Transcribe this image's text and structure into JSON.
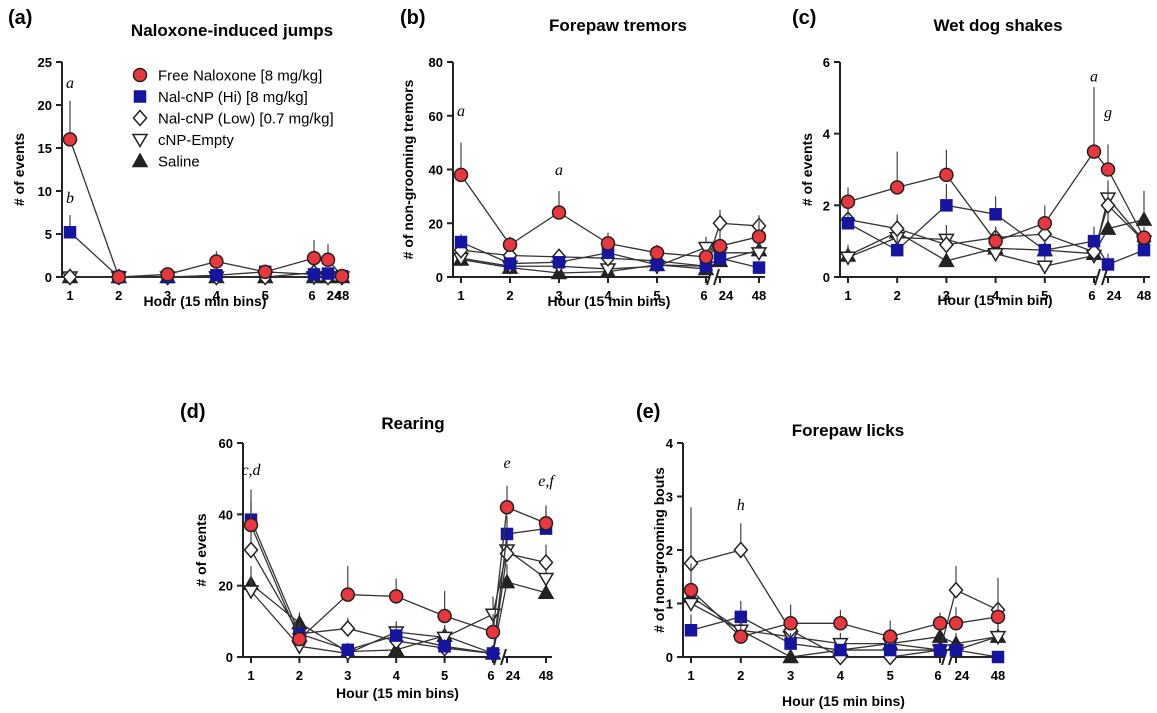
{
  "legend": [
    {
      "name": "Free Naloxone [8 mg/kg]",
      "marker": "circle",
      "fill": "#e8383d",
      "stroke": "#222222"
    },
    {
      "name": "Nal-cNP (Hi) [8 mg/kg]",
      "marker": "square",
      "fill": "#1515a0",
      "stroke": "#1515a0"
    },
    {
      "name": "Nal-cNP (Low) [0.7 mg/kg]",
      "marker": "diamond",
      "fill": "#ffffff",
      "stroke": "#222222"
    },
    {
      "name": "cNP-Empty",
      "marker": "triangle-down",
      "fill": "#ffffff",
      "stroke": "#222222"
    },
    {
      "name": "Saline",
      "marker": "triangle-up",
      "fill": "#222222",
      "stroke": "#222222"
    }
  ],
  "chart_data": [
    {
      "panel": "(a)",
      "type": "line",
      "title": "Naloxone-induced jumps",
      "xlabel": "Hour (15 min bins)",
      "ylabel": "# of events",
      "x": [
        "1",
        "2",
        "3",
        "4",
        "5",
        "6",
        "24",
        "48"
      ],
      "ylim": [
        0,
        25
      ],
      "yticks": [
        0,
        5,
        10,
        15,
        20,
        25
      ],
      "series": [
        {
          "name": "Free Naloxone [8 mg/kg]",
          "values": [
            16,
            0,
            0.3,
            1.8,
            0.6,
            2.2,
            2.0,
            0.1
          ],
          "err": [
            4.5,
            0,
            0.3,
            1.2,
            0.5,
            2.1,
            1.8,
            0.2
          ]
        },
        {
          "name": "Nal-cNP (Hi) [8 mg/kg]",
          "values": [
            5.2,
            0,
            0,
            0.2,
            0.6,
            0.3,
            0.4,
            0.1
          ],
          "err": [
            2.0,
            0,
            0,
            0.3,
            0.4,
            0.3,
            0.4,
            0.1
          ]
        },
        {
          "name": "Nal-cNP (Low) [0.7 mg/kg]",
          "values": [
            0,
            0,
            0,
            0,
            0,
            0.5,
            0,
            0
          ],
          "err": [
            0,
            0,
            0,
            0,
            0,
            0.3,
            0,
            0
          ]
        },
        {
          "name": "cNP-Empty",
          "values": [
            0,
            0,
            0,
            0,
            0,
            0,
            0,
            0
          ],
          "err": [
            0,
            0,
            0,
            0,
            0,
            0,
            0,
            0
          ]
        },
        {
          "name": "Saline",
          "values": [
            0,
            0,
            0,
            0,
            0,
            0,
            0,
            0
          ],
          "err": [
            0,
            0,
            0,
            0,
            0,
            0,
            0,
            0
          ]
        }
      ],
      "annotations": [
        {
          "text": "a",
          "x": "1",
          "y": 22
        },
        {
          "text": "b",
          "x": "1",
          "y": 8.6
        }
      ]
    },
    {
      "panel": "(b)",
      "type": "line",
      "title": "Forepaw tremors",
      "xlabel": "Hour (15 min bins)",
      "ylabel": "# of non-grooming tremors",
      "x": [
        "1",
        "2",
        "3",
        "4",
        "5",
        "6",
        "24",
        "48"
      ],
      "ylim": [
        0,
        80
      ],
      "yticks": [
        0,
        20,
        40,
        60,
        80
      ],
      "series": [
        {
          "name": "Free Naloxone [8 mg/kg]",
          "values": [
            38,
            12,
            24,
            12.5,
            9,
            7.5,
            11.5,
            15
          ],
          "err": [
            12,
            3,
            8,
            4,
            3,
            2.5,
            6,
            6
          ]
        },
        {
          "name": "Nal-cNP (Hi) [8 mg/kg]",
          "values": [
            13,
            5,
            5.5,
            9,
            4.5,
            4,
            7,
            3.5
          ],
          "err": [
            3,
            2,
            2,
            3,
            2,
            2,
            3,
            2
          ]
        },
        {
          "name": "Nal-cNP (Low) [0.7 mg/kg]",
          "values": [
            10,
            8,
            7.5,
            7,
            6,
            4,
            20,
            19
          ],
          "err": [
            3,
            3,
            3,
            3,
            3,
            2,
            5,
            4
          ]
        },
        {
          "name": "cNP-Empty",
          "values": [
            7,
            4,
            4,
            3,
            4,
            11,
            9,
            9
          ],
          "err": [
            2,
            2,
            2,
            2,
            2,
            4,
            3,
            4
          ]
        },
        {
          "name": "Saline",
          "values": [
            6.5,
            3.5,
            1.5,
            2,
            4.5,
            3,
            6,
            10
          ],
          "err": [
            2,
            2,
            1,
            1,
            2,
            2,
            2,
            3
          ]
        }
      ],
      "annotations": [
        {
          "text": "a",
          "x": "1",
          "y": 60
        },
        {
          "text": "a",
          "x": "3",
          "y": 38
        }
      ]
    },
    {
      "panel": "(c)",
      "type": "line",
      "title": "Wet dog shakes",
      "xlabel": "Hour (15 min bin)",
      "ylabel": "# of events",
      "x": [
        "1",
        "2",
        "3",
        "4",
        "5",
        "6",
        "24",
        "48"
      ],
      "ylim": [
        0,
        6
      ],
      "yticks": [
        0,
        2,
        4,
        6
      ],
      "series": [
        {
          "name": "Free Naloxone [8 mg/kg]",
          "values": [
            2.1,
            2.5,
            2.85,
            1.0,
            1.5,
            3.5,
            3.0,
            1.1
          ],
          "err": [
            0.4,
            1.0,
            0.7,
            0.4,
            0.5,
            1.8,
            0.7,
            0.3
          ]
        },
        {
          "name": "Nal-cNP (Hi) [8 mg/kg]",
          "values": [
            1.5,
            0.75,
            2.0,
            1.75,
            0.75,
            1.0,
            0.35,
            0.75
          ],
          "err": [
            0.4,
            0.4,
            0.6,
            0.5,
            0.3,
            0.4,
            0.3,
            0.3
          ]
        },
        {
          "name": "Nal-cNP (Low) [0.7 mg/kg]",
          "values": [
            1.6,
            1.35,
            0.9,
            1.1,
            1.2,
            0.7,
            2.0,
            1.0
          ],
          "err": [
            0.4,
            0.4,
            0.3,
            0.3,
            0.4,
            0.3,
            0.5,
            0.3
          ]
        },
        {
          "name": "cNP-Empty",
          "values": [
            0.55,
            1.1,
            1.05,
            0.65,
            0.3,
            0.6,
            2.2,
            1.0
          ],
          "err": [
            0.3,
            0.3,
            0.4,
            0.3,
            0.3,
            0.3,
            0.5,
            0.3
          ]
        },
        {
          "name": "Saline",
          "values": [
            0.6,
            1.25,
            0.45,
            0.8,
            0.75,
            0.65,
            1.35,
            1.6
          ],
          "err": [
            0.3,
            0.4,
            0.3,
            0.3,
            0.3,
            0.3,
            0.5,
            0.8
          ]
        }
      ],
      "annotations": [
        {
          "text": "a",
          "x": "6",
          "y": 5.45
        },
        {
          "text": "g",
          "x": "24",
          "y": 4.45
        }
      ]
    },
    {
      "panel": "(d)",
      "type": "line",
      "title": "Rearing",
      "xlabel": "Hour (15 min bins)",
      "ylabel": "# of events",
      "x": [
        "1",
        "2",
        "3",
        "4",
        "5",
        "6",
        "24",
        "48"
      ],
      "ylim": [
        0,
        60
      ],
      "yticks": [
        0,
        20,
        40,
        60
      ],
      "series": [
        {
          "name": "Free Naloxone [8 mg/kg]",
          "values": [
            37,
            5,
            17.5,
            17,
            11.5,
            7,
            42,
            37.5
          ],
          "err": [
            10,
            2,
            8,
            5,
            7,
            5,
            6,
            5
          ]
        },
        {
          "name": "Nal-cNP (Hi) [8 mg/kg]",
          "values": [
            38.5,
            6.5,
            2,
            6,
            3,
            1,
            34.5,
            36
          ],
          "err": [
            5,
            3,
            2,
            3,
            2,
            1,
            5,
            5
          ]
        },
        {
          "name": "Nal-cNP (Low) [0.7 mg/kg]",
          "values": [
            30,
            6.5,
            8,
            4.5,
            2.5,
            1,
            29,
            26.5
          ],
          "err": [
            6,
            3,
            3,
            3,
            2,
            1,
            6,
            5
          ]
        },
        {
          "name": "cNP-Empty",
          "values": [
            18.5,
            3,
            1,
            7,
            5.5,
            12,
            30,
            22
          ],
          "err": [
            4,
            2,
            1,
            3,
            3,
            5,
            5,
            5
          ]
        },
        {
          "name": "Saline",
          "values": [
            20.5,
            9.5,
            1.5,
            2,
            6,
            1,
            21,
            18
          ],
          "err": [
            5,
            3,
            1,
            2,
            3,
            1,
            5,
            4
          ]
        }
      ],
      "annotations": [
        {
          "text": "c,d",
          "x": "1",
          "y": 51
        },
        {
          "text": "e",
          "x": "24",
          "y": 53
        },
        {
          "text": "e,f",
          "x": "48",
          "y": 48
        }
      ]
    },
    {
      "panel": "(e)",
      "type": "line",
      "title": "Forepaw licks",
      "xlabel": "Hour (15 min bins)",
      "ylabel": "# of non-grooming bouts",
      "x": [
        "1",
        "2",
        "3",
        "4",
        "5",
        "6",
        "24",
        "48"
      ],
      "ylim": [
        0,
        4
      ],
      "yticks": [
        0,
        1,
        2,
        3,
        4
      ],
      "series": [
        {
          "name": "Free Naloxone [8 mg/kg]",
          "values": [
            1.25,
            0.38,
            0.63,
            0.63,
            0.38,
            0.63,
            0.63,
            0.75
          ],
          "err": [
            0.5,
            0.3,
            0.35,
            0.25,
            0.3,
            0.2,
            0.3,
            0.3
          ]
        },
        {
          "name": "Nal-cNP (Hi) [8 mg/kg]",
          "values": [
            0.5,
            0.75,
            0.25,
            0.13,
            0.13,
            0.13,
            0.13,
            0
          ],
          "err": [
            0.3,
            0.3,
            0.2,
            0.1,
            0.1,
            0.1,
            0.1,
            0
          ]
        },
        {
          "name": "Nal-cNP (Low) [0.7 mg/kg]",
          "values": [
            1.75,
            2.0,
            0.5,
            0,
            0,
            0.13,
            1.25,
            0.88
          ],
          "err": [
            1.05,
            0.5,
            0.3,
            0.1,
            0.1,
            0.1,
            0.45,
            0.6
          ]
        },
        {
          "name": "cNP-Empty",
          "values": [
            1.0,
            0.5,
            0.38,
            0.25,
            0.25,
            0.13,
            0.13,
            0.38
          ],
          "err": [
            0.3,
            0.3,
            0.25,
            0.2,
            0.2,
            0.1,
            0.1,
            0.25
          ]
        },
        {
          "name": "Saline",
          "values": [
            1.13,
            0.5,
            0,
            0.13,
            0.25,
            0.38,
            0.25,
            0.38
          ],
          "err": [
            0.3,
            0.3,
            0.05,
            0.1,
            0.15,
            0.2,
            0.2,
            0.25
          ]
        }
      ],
      "annotations": [
        {
          "text": "h",
          "x": "2",
          "y": 2.75
        }
      ]
    }
  ]
}
